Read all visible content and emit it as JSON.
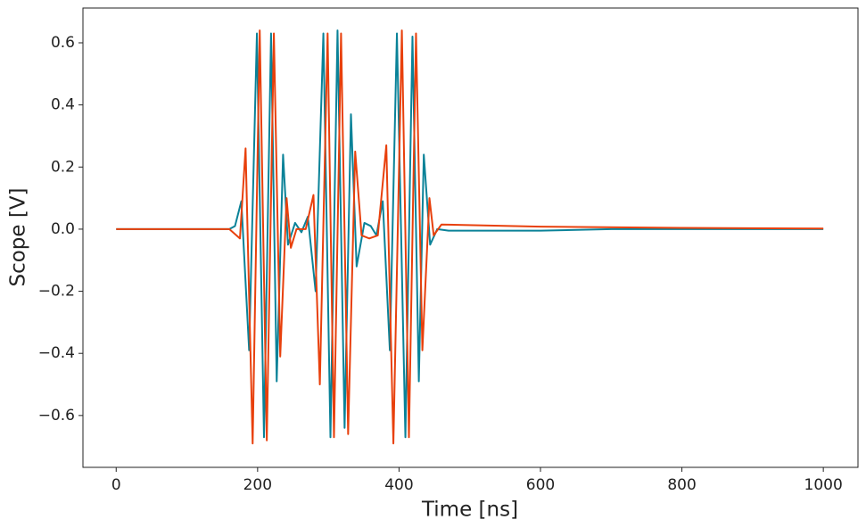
{
  "chart_data": {
    "type": "line",
    "xlabel": "Time [ns]",
    "ylabel": "Scope [V]",
    "xlim": [
      -47,
      1049
    ],
    "ylim": [
      -0.767,
      0.712
    ],
    "xticks": [
      0,
      200,
      400,
      600,
      800,
      1000
    ],
    "yticks": [
      {
        "value": -0.6,
        "label": "−0.6"
      },
      {
        "value": -0.4,
        "label": "−0.4"
      },
      {
        "value": -0.2,
        "label": "−0.2"
      },
      {
        "value": 0,
        "label": "0.0"
      },
      0.2,
      0.4,
      0.6
    ],
    "series": [
      {
        "color": "#0a8298",
        "x": [
          0,
          160,
          168,
          177,
          188,
          199,
          209,
          219,
          227,
          236,
          243,
          253,
          262,
          271,
          282,
          293,
          303,
          313,
          323,
          332,
          340,
          351,
          360,
          368,
          377,
          387,
          397,
          409,
          419,
          428,
          435,
          444,
          454,
          470,
          600,
          700,
          1000
        ],
        "values": [
          0,
          0,
          0.01,
          0.09,
          -0.39,
          0.63,
          -0.67,
          0.63,
          -0.49,
          0.24,
          -0.05,
          0.02,
          -0.01,
          0.04,
          -0.2,
          0.63,
          -0.67,
          0.64,
          -0.64,
          0.37,
          -0.12,
          0.02,
          0.01,
          -0.02,
          0.09,
          -0.39,
          0.63,
          -0.67,
          0.62,
          -0.49,
          0.24,
          -0.05,
          0.0,
          -0.005,
          -0.005,
          0,
          0
        ]
      },
      {
        "color": "#e8400c",
        "x": [
          0,
          160,
          175,
          183,
          193,
          203,
          213,
          223,
          232,
          241,
          247,
          255,
          268,
          279,
          288,
          299,
          308,
          318,
          328,
          338,
          347,
          358,
          370,
          382,
          392,
          404,
          414,
          424,
          433,
          443,
          449,
          460,
          600,
          800,
          1000
        ],
        "values": [
          0,
          0,
          -0.03,
          0.26,
          -0.69,
          0.64,
          -0.68,
          0.63,
          -0.41,
          0.1,
          -0.06,
          0,
          0,
          0.11,
          -0.5,
          0.63,
          -0.67,
          0.63,
          -0.66,
          0.25,
          -0.02,
          -0.03,
          -0.02,
          0.27,
          -0.69,
          0.64,
          -0.67,
          0.63,
          -0.39,
          0.1,
          -0.02,
          0.015,
          0.008,
          0.004,
          0.002
        ]
      }
    ]
  }
}
